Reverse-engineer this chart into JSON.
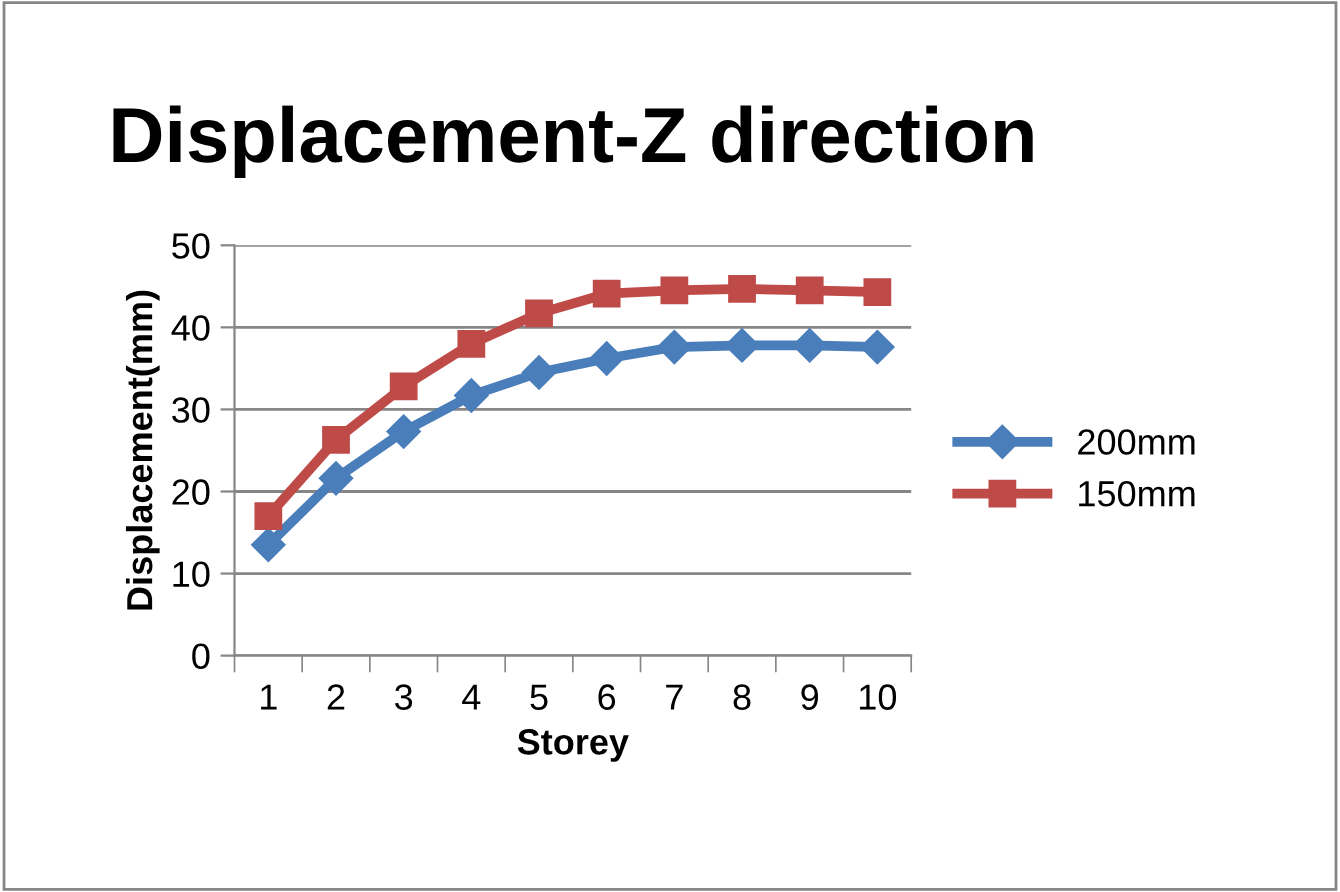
{
  "chart_data": {
    "type": "line",
    "title": "Displacement-Z direction",
    "xlabel": "Storey",
    "ylabel": "Displacement(mm)",
    "categories": [
      "1",
      "2",
      "3",
      "4",
      "5",
      "6",
      "7",
      "8",
      "9",
      "10"
    ],
    "series": [
      {
        "name": "200mm",
        "color": "#4a7ebb",
        "marker": "diamond",
        "values": [
          13.5,
          21.6,
          27.3,
          31.7,
          34.5,
          36.2,
          37.6,
          37.8,
          37.8,
          37.6
        ]
      },
      {
        "name": "150mm",
        "color": "#be4b48",
        "marker": "square",
        "values": [
          17.0,
          26.3,
          32.8,
          38.0,
          41.7,
          44.1,
          44.5,
          44.7,
          44.5,
          44.3
        ]
      }
    ],
    "ylim": [
      0,
      50
    ],
    "yticks": [
      0,
      10,
      20,
      30,
      40,
      50
    ],
    "grid": "y",
    "legend": "right",
    "line_style": "solid"
  }
}
